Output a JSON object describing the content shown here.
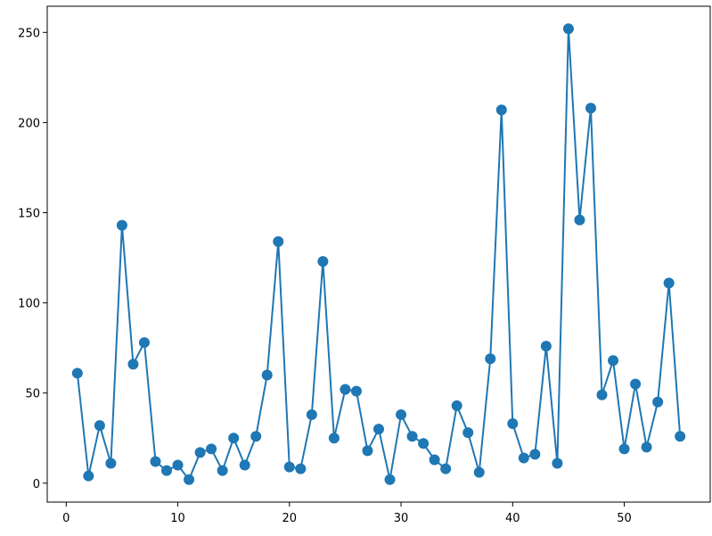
{
  "chart_data": {
    "type": "line",
    "color": "#1f77b4",
    "markers": true,
    "x": [
      1,
      2,
      3,
      4,
      5,
      6,
      7,
      8,
      9,
      10,
      11,
      12,
      13,
      14,
      15,
      16,
      17,
      18,
      19,
      20,
      21,
      22,
      23,
      24,
      25,
      26,
      27,
      28,
      29,
      30,
      31,
      32,
      33,
      34,
      35,
      36,
      37,
      38,
      39,
      40,
      41,
      42,
      43,
      44,
      45,
      46,
      47,
      48,
      49,
      50,
      51,
      52,
      53,
      54,
      55
    ],
    "values": [
      61,
      4,
      32,
      11,
      143,
      66,
      78,
      12,
      7,
      10,
      2,
      17,
      19,
      7,
      25,
      10,
      26,
      60,
      134,
      9,
      8,
      38,
      123,
      25,
      52,
      51,
      18,
      30,
      2,
      38,
      26,
      22,
      13,
      8,
      43,
      28,
      6,
      69,
      207,
      33,
      14,
      16,
      76,
      11,
      252,
      146,
      208,
      49,
      68,
      19,
      55,
      20,
      45,
      111,
      26
    ],
    "xlim": [
      -1.7,
      57.7
    ],
    "xticks": [
      0,
      10,
      20,
      30,
      40,
      50
    ],
    "ylim": [
      -10.5,
      264.5
    ],
    "yticks": [
      0,
      50,
      100,
      150,
      200,
      250
    ]
  }
}
